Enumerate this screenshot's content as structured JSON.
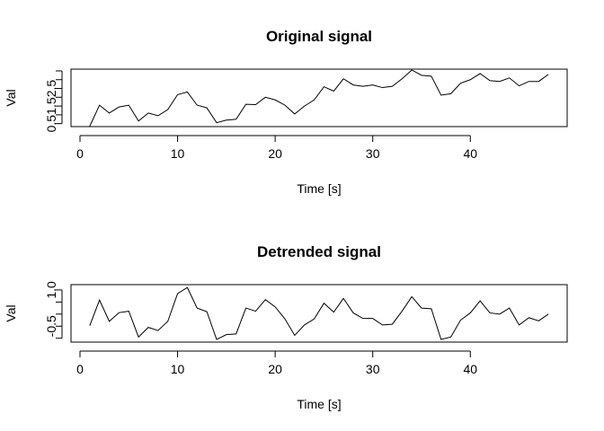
{
  "chart_data": [
    {
      "type": "line",
      "title": "Original signal",
      "xlabel": "Time [s]",
      "ylabel": "Val",
      "xlim": [
        -0.92,
        49.92
      ],
      "ylim": [
        0.33,
        3.6
      ],
      "xticks": [
        0,
        10,
        20,
        30,
        40
      ],
      "xtick_labels": [
        "0",
        "10",
        "20",
        "30",
        "40"
      ],
      "yticks": [
        0.5,
        1.0,
        1.5,
        2.0,
        2.5,
        3.0,
        3.5
      ],
      "ytick_labels": [
        "0.5",
        "",
        "1.5",
        "",
        "2.5",
        "",
        ""
      ],
      "grid": false,
      "x": [
        1,
        2,
        3,
        4,
        5,
        6,
        7,
        8,
        9,
        10,
        11,
        12,
        13,
        14,
        15,
        16,
        17,
        18,
        19,
        20,
        21,
        22,
        23,
        24,
        25,
        26,
        27,
        28,
        29,
        30,
        31,
        32,
        33,
        34,
        35,
        36,
        37,
        38,
        39,
        40,
        41,
        42,
        43,
        44,
        45,
        46,
        47,
        48
      ],
      "y": [
        0.35,
        1.55,
        1.1,
        1.45,
        1.55,
        0.65,
        1.1,
        0.95,
        1.3,
        2.15,
        2.3,
        1.55,
        1.4,
        0.55,
        0.7,
        0.75,
        1.6,
        1.58,
        2.0,
        1.85,
        1.55,
        1.05,
        1.5,
        1.85,
        2.6,
        2.35,
        3.05,
        2.7,
        2.62,
        2.7,
        2.55,
        2.62,
        3.05,
        3.55,
        3.25,
        3.2,
        2.12,
        2.2,
        2.8,
        3.0,
        3.35,
        2.95,
        2.9,
        3.1,
        2.65,
        2.9,
        2.9,
        3.3
      ]
    },
    {
      "type": "line",
      "title": "Detrended signal",
      "xlabel": "Time [s]",
      "ylabel": "Val",
      "xlim": [
        -0.92,
        49.92
      ],
      "ylim": [
        -1.16,
        1.22
      ],
      "xticks": [
        0,
        10,
        20,
        30,
        40
      ],
      "xtick_labels": [
        "0",
        "10",
        "20",
        "30",
        "40"
      ],
      "yticks": [
        -1.0,
        -0.5,
        0.0,
        0.5,
        1.0
      ],
      "ytick_labels": [
        "",
        "-0.5",
        "",
        "",
        "1.0"
      ],
      "grid": false,
      "x": [
        1,
        2,
        3,
        4,
        5,
        6,
        7,
        8,
        9,
        10,
        11,
        12,
        13,
        14,
        15,
        16,
        17,
        18,
        19,
        20,
        21,
        22,
        23,
        24,
        25,
        26,
        27,
        28,
        29,
        30,
        31,
        32,
        33,
        34,
        35,
        36,
        37,
        38,
        39,
        40,
        41,
        42,
        43,
        44,
        45,
        46,
        47,
        48
      ],
      "y": [
        -0.48,
        0.58,
        -0.3,
        0.06,
        0.12,
        -0.95,
        -0.55,
        -0.68,
        -0.3,
        0.85,
        1.1,
        0.25,
        0.1,
        -1.05,
        -0.85,
        -0.82,
        0.25,
        0.12,
        0.6,
        0.3,
        -0.2,
        -0.88,
        -0.45,
        -0.2,
        0.45,
        0.08,
        0.65,
        0.05,
        -0.18,
        -0.18,
        -0.45,
        -0.42,
        0.12,
        0.72,
        0.25,
        0.22,
        -1.05,
        -0.95,
        -0.25,
        0.05,
        0.55,
        0.05,
        0.0,
        0.25,
        -0.45,
        -0.15,
        -0.28,
        -0.0
      ]
    }
  ]
}
